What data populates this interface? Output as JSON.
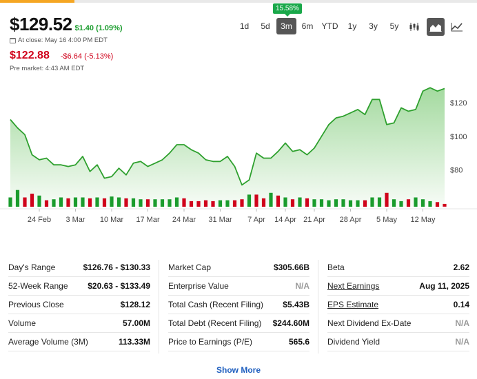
{
  "quote": {
    "price": "$129.52",
    "change": "$1.40 (1.09%)",
    "close_label": "At close: May 16 4:00 PM EDT",
    "premarket_price": "$122.88",
    "premarket_change": "-$6.64 (-5.13%)",
    "premarket_label": "Pre market: 4:43 AM EDT"
  },
  "range_badge": "15.58%",
  "ranges": [
    {
      "label": "1d",
      "active": false
    },
    {
      "label": "5d",
      "active": false
    },
    {
      "label": "3m",
      "active": true
    },
    {
      "label": "6m",
      "active": false
    },
    {
      "label": "YTD",
      "active": false
    },
    {
      "label": "1y",
      "active": false
    },
    {
      "label": "3y",
      "active": false
    },
    {
      "label": "5y",
      "active": false
    }
  ],
  "chart_types": [
    {
      "name": "candlestick-icon",
      "active": false
    },
    {
      "name": "area-chart-icon",
      "active": true
    },
    {
      "name": "line-chart-icon",
      "active": false
    }
  ],
  "colors": {
    "up": "#1a9c2d",
    "down": "#d0021b",
    "line": "#2ea02e",
    "area_top": "#9fd89a",
    "link": "#1f5fbf",
    "active": "#565656"
  },
  "chart_data": {
    "type": "area",
    "title": "",
    "xlabel": "",
    "ylabel": "",
    "ylim": [
      58,
      132
    ],
    "y_ticks": [
      {
        "value": 80,
        "label": "$80"
      },
      {
        "value": 100,
        "label": "$100"
      },
      {
        "value": 120,
        "label": "$120"
      }
    ],
    "x_ticks": [
      "24 Feb",
      "3 Mar",
      "10 Mar",
      "17 Mar",
      "24 Mar",
      "31 Mar",
      "7 Apr",
      "14 Apr",
      "21 Apr",
      "28 Apr",
      "5 May",
      "12 May"
    ],
    "x_tick_index": [
      4,
      9,
      14,
      19,
      24,
      29,
      34,
      38,
      42,
      47,
      52,
      57
    ],
    "series": [
      {
        "values": [
          110,
          105,
          101,
          89,
          86,
          87,
          83,
          83,
          82,
          83,
          88,
          79,
          83,
          75,
          76,
          81,
          77,
          84,
          85,
          82,
          84,
          86,
          90,
          95,
          95,
          92,
          90,
          86,
          85,
          85,
          88,
          82,
          71,
          74,
          90,
          87,
          87,
          91,
          96,
          91,
          92,
          89,
          93,
          100,
          107,
          111,
          112,
          114,
          116,
          113,
          122,
          122,
          107,
          108,
          117,
          115,
          116,
          127,
          129,
          127,
          128.5
        ],
        "volume": [
          10,
          18,
          10,
          14,
          12,
          7,
          8,
          10,
          9,
          10,
          10,
          9,
          10,
          9,
          11,
          10,
          9,
          9,
          8,
          8,
          8,
          8,
          8,
          10,
          9,
          6,
          6,
          7,
          6,
          7,
          7,
          7,
          8,
          13,
          13,
          9,
          15,
          12,
          10,
          8,
          10,
          9,
          8,
          8,
          7,
          8,
          8,
          7,
          7,
          7,
          10,
          10,
          15,
          8,
          6,
          8,
          10,
          8,
          6,
          5,
          3
        ],
        "direction": [
          "up",
          "up",
          "down",
          "down",
          "up",
          "down",
          "up",
          "up",
          "down",
          "up",
          "up",
          "down",
          "up",
          "down",
          "up",
          "up",
          "down",
          "up",
          "up",
          "down",
          "up",
          "up",
          "up",
          "up",
          "down",
          "down",
          "down",
          "down",
          "down",
          "up",
          "up",
          "down",
          "down",
          "up",
          "down",
          "down",
          "up",
          "down",
          "up",
          "down",
          "up",
          "down",
          "up",
          "up",
          "up",
          "up",
          "up",
          "up",
          "up",
          "down",
          "up",
          "up",
          "down",
          "up",
          "up",
          "down",
          "up",
          "up",
          "up",
          "down",
          "down"
        ]
      }
    ]
  },
  "stats": {
    "col1": [
      {
        "label": "Day's Range",
        "value": "$126.76 - $130.33"
      },
      {
        "label": "52-Week Range",
        "value": "$20.63 - $133.49"
      },
      {
        "label": "Previous Close",
        "value": "$128.12"
      },
      {
        "label": "Volume",
        "value": "57.00M"
      },
      {
        "label": "Average Volume (3M)",
        "value": "113.33M"
      }
    ],
    "col2": [
      {
        "label": "Market Cap",
        "value": "$305.66B"
      },
      {
        "label": "Enterprise Value",
        "value": "N/A"
      },
      {
        "label": "Total Cash (Recent Filing)",
        "value": "$5.43B"
      },
      {
        "label": "Total Debt (Recent Filing)",
        "value": "$244.60M"
      },
      {
        "label": "Price to Earnings (P/E)",
        "value": "565.6"
      }
    ],
    "col3": [
      {
        "label": "Beta",
        "value": "2.62"
      },
      {
        "label": "Next Earnings",
        "value": "Aug 11, 2025"
      },
      {
        "label": "EPS Estimate",
        "value": "0.14"
      },
      {
        "label": "Next Dividend Ex-Date",
        "value": "N/A"
      },
      {
        "label": "Dividend Yield",
        "value": "N/A"
      }
    ]
  },
  "show_more": "Show More"
}
